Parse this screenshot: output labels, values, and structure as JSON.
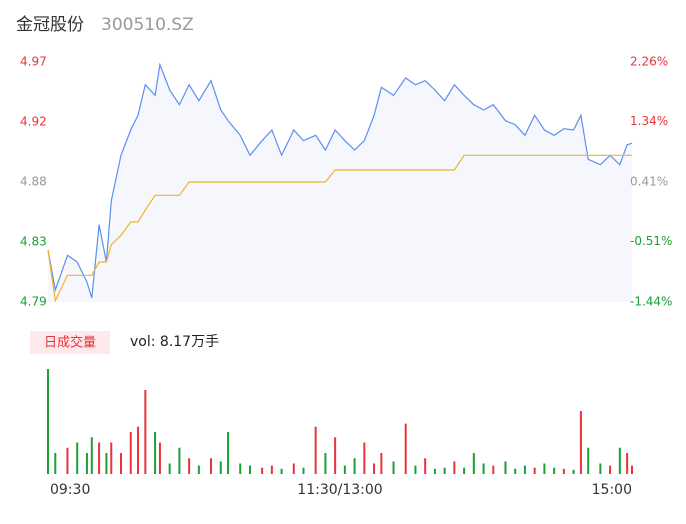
{
  "chart_data": [
    {
      "type": "line",
      "title": "金冠股份",
      "subtitle": "300510.SZ",
      "up_color": "#e8333a",
      "down_color": "#1aa034",
      "flat_color": "#999999",
      "xlim": [
        0,
        240
      ],
      "x": [
        0,
        3,
        8,
        12,
        16,
        18,
        21,
        24,
        26,
        30,
        34,
        37,
        40,
        44,
        46,
        50,
        54,
        58,
        62,
        67,
        71,
        74,
        79,
        83,
        88,
        92,
        96,
        101,
        105,
        110,
        114,
        118,
        122,
        126,
        130,
        134,
        137,
        142,
        147,
        151,
        155,
        159,
        163,
        167,
        171,
        175,
        179,
        183,
        188,
        192,
        196,
        200,
        204,
        208,
        212,
        216,
        219,
        222,
        227,
        231,
        235,
        238,
        240
      ],
      "series": [
        {
          "color": "#5b8ff0",
          "fill": "#f5f7fd",
          "values": [
            4.829,
            4.799,
            4.825,
            4.82,
            4.805,
            4.793,
            4.848,
            4.82,
            4.866,
            4.9,
            4.919,
            4.93,
            4.953,
            4.945,
            4.968,
            4.949,
            4.938,
            4.953,
            4.941,
            4.956,
            4.934,
            4.926,
            4.915,
            4.9,
            4.911,
            4.919,
            4.9,
            4.919,
            4.911,
            4.915,
            4.904,
            4.919,
            4.911,
            4.904,
            4.911,
            4.93,
            4.951,
            4.945,
            4.958,
            4.953,
            4.956,
            4.949,
            4.941,
            4.953,
            4.945,
            4.938,
            4.934,
            4.938,
            4.926,
            4.923,
            4.915,
            4.93,
            4.919,
            4.915,
            4.92,
            4.919,
            4.93,
            4.897,
            4.893,
            4.9,
            4.893,
            4.908,
            4.909
          ]
        },
        {
          "color": "#f0b429",
          "values": [
            4.829,
            4.791,
            4.81,
            4.81,
            4.81,
            4.81,
            4.82,
            4.82,
            4.833,
            4.84,
            4.85,
            4.85,
            4.859,
            4.87,
            4.87,
            4.87,
            4.87,
            4.88,
            4.88,
            4.88,
            4.88,
            4.88,
            4.88,
            4.88,
            4.88,
            4.88,
            4.88,
            4.88,
            4.88,
            4.88,
            4.88,
            4.889,
            4.889,
            4.889,
            4.889,
            4.889,
            4.889,
            4.889,
            4.889,
            4.889,
            4.889,
            4.889,
            4.889,
            4.889,
            4.9,
            4.9,
            4.9,
            4.9,
            4.9,
            4.9,
            4.9,
            4.9,
            4.9,
            4.9,
            4.9,
            4.9,
            4.9,
            4.9,
            4.9,
            4.9,
            4.9,
            4.9,
            4.9
          ]
        }
      ],
      "ylim": [
        4.79,
        4.97
      ],
      "yticks": [
        4.97,
        {
          "value": 4.925,
          "label": "4.92"
        },
        4.88,
        {
          "value": 4.835,
          "label": "4.83"
        },
        4.79
      ],
      "y2lim": [
        -1.44,
        2.26
      ],
      "y2ticks": [
        {
          "value": 2.26,
          "label": "2.26%"
        },
        {
          "value": 1.34,
          "label": "1.34%"
        },
        {
          "value": 0.41,
          "label": "0.41%"
        },
        {
          "value": -0.51,
          "label": "-0.51%"
        },
        {
          "value": -1.44,
          "label": "-1.44%"
        }
      ]
    },
    {
      "type": "bar",
      "legend": "日成交量",
      "text": "vol: 8.17万手",
      "xlim": [
        0,
        240
      ],
      "x": [
        0,
        3,
        8,
        12,
        16,
        18,
        21,
        24,
        26,
        30,
        34,
        37,
        40,
        44,
        46,
        50,
        54,
        58,
        62,
        67,
        71,
        74,
        79,
        83,
        88,
        92,
        96,
        101,
        105,
        110,
        114,
        118,
        122,
        126,
        130,
        134,
        137,
        142,
        147,
        151,
        155,
        159,
        163,
        167,
        171,
        175,
        179,
        183,
        188,
        192,
        196,
        200,
        204,
        208,
        212,
        216,
        219,
        222,
        227,
        231,
        235,
        238,
        240
      ],
      "values": [
        100,
        20,
        25,
        30,
        20,
        35,
        30,
        20,
        30,
        20,
        40,
        45,
        80,
        40,
        30,
        10,
        25,
        15,
        8,
        15,
        12,
        40,
        10,
        8,
        6,
        8,
        5,
        10,
        6,
        45,
        20,
        35,
        8,
        15,
        30,
        10,
        20,
        12,
        48,
        8,
        15,
        5,
        6,
        12,
        6,
        20,
        10,
        8,
        12,
        5,
        8,
        6,
        10,
        6,
        5,
        4,
        60,
        25,
        10,
        8,
        25,
        20,
        8
      ],
      "ylim": [
        0,
        100
      ],
      "xticks": [
        {
          "value": 0,
          "label": "09:30"
        },
        {
          "value": 120,
          "label": "11:30/13:00"
        },
        {
          "value": 240,
          "label": "15:00"
        }
      ]
    }
  ]
}
